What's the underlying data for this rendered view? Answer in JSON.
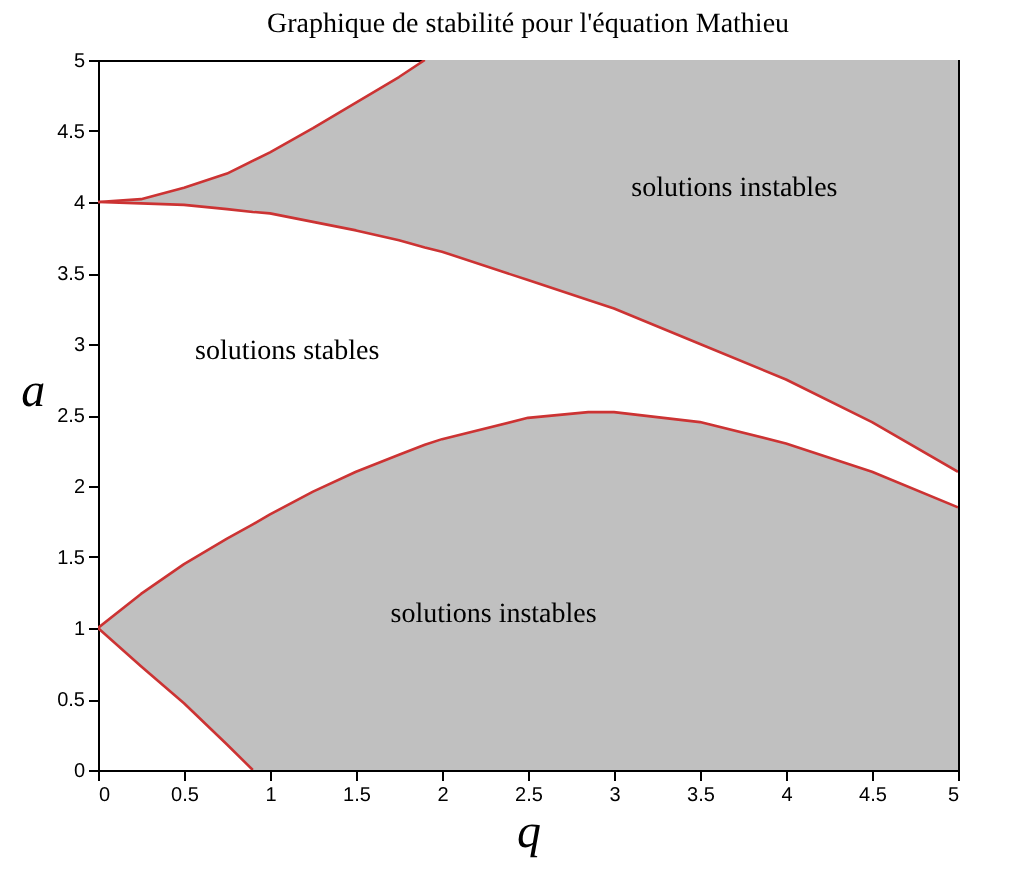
{
  "chart_data": {
    "type": "line",
    "title": "Graphique de stabilité pour l'équation Mathieu",
    "xlabel": "q",
    "ylabel": "a",
    "xlim": [
      0,
      5
    ],
    "ylim": [
      0,
      5
    ],
    "xticks": [
      0,
      0.5,
      1,
      1.5,
      2,
      2.5,
      3,
      3.5,
      4,
      4.5,
      5
    ],
    "yticks": [
      0,
      0.5,
      1,
      1.5,
      2,
      2.5,
      3,
      3.5,
      4,
      4.5,
      5
    ],
    "series": [
      {
        "color": "#cc3333",
        "x": [
          0,
          0.25,
          0.5,
          0.75,
          0.9,
          1,
          1.25,
          1.5,
          1.75,
          1.9,
          2,
          2.5,
          2.85,
          3,
          3.5,
          4,
          4.5,
          5
        ],
        "values": [
          1,
          1.24,
          1.45,
          1.63,
          1.73,
          1.8,
          1.96,
          2.1,
          2.22,
          2.29,
          2.33,
          2.48,
          2.52,
          2.52,
          2.45,
          2.3,
          2.1,
          1.85
        ],
        "lower": [
          1,
          0.73,
          0.47,
          0.18,
          0,
          0,
          0,
          0,
          0,
          0,
          0,
          0,
          0,
          0,
          0,
          0,
          0,
          0
        ],
        "upper": [
          1,
          1.24,
          1.45,
          1.63,
          1.73,
          1.8,
          1.96,
          2.1,
          2.22,
          2.29,
          2.33,
          2.48,
          2.52,
          2.52,
          2.45,
          2.3,
          2.1,
          1.85
        ]
      },
      {
        "color": "#cc3333",
        "x": [
          0,
          0.25,
          0.5,
          0.75,
          0.9
        ],
        "values": [
          1,
          0.73,
          0.47,
          0.18,
          0
        ]
      },
      {
        "color": "#cc3333",
        "x": [
          0,
          0.25,
          0.5,
          0.75,
          0.9,
          1,
          1.25,
          1.5,
          1.75,
          1.9,
          2,
          2.5,
          2.85,
          3,
          3.5,
          4,
          4.5,
          5
        ],
        "values": [
          4,
          3.99,
          3.98,
          3.95,
          3.93,
          3.92,
          3.86,
          3.8,
          3.73,
          3.68,
          3.65,
          3.45,
          3.31,
          3.25,
          3,
          2.75,
          2.45,
          2.1
        ],
        "lower": [
          4,
          3.99,
          3.98,
          3.95,
          3.93,
          3.92,
          3.86,
          3.8,
          3.73,
          3.68,
          3.65,
          3.45,
          3.31,
          3.25,
          3,
          2.75,
          2.45,
          2.1
        ],
        "upper": [
          4,
          4.02,
          4.1,
          4.2,
          4.28,
          4.35,
          4.52,
          4.7,
          4.88,
          5,
          5,
          5,
          5,
          5,
          5,
          5,
          5,
          5
        ]
      },
      {
        "color": "#cc3333",
        "x": [
          0,
          0.25,
          0.5,
          0.75,
          1,
          1.25,
          1.5,
          1.75,
          1.9
        ],
        "values": [
          4,
          4.02,
          4.1,
          4.2,
          4.35,
          4.52,
          4.7,
          4.88,
          5
        ]
      }
    ],
    "annotations": [
      "solutions instables",
      "solutions stables",
      "solutions instables"
    ]
  }
}
